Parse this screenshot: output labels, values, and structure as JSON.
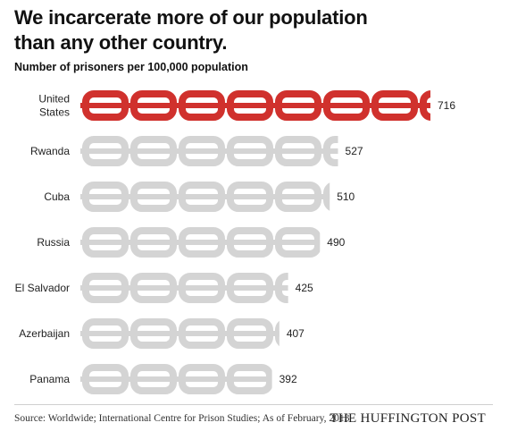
{
  "header": {
    "title": "We incarcerate more of our population than any other country.",
    "subtitle": "Number of prisoners per 100,000 population"
  },
  "footer": {
    "source": "Source: Worldwide; International Centre for Prison Studies; As of February, 2013",
    "brand": "THE HUFFINGTON POST"
  },
  "colors": {
    "highlight": "#d0312d",
    "default": "#d4d4d4"
  },
  "chart_data": {
    "type": "bar",
    "orientation": "horizontal",
    "title": "We incarcerate more of our population than any other country.",
    "subtitle": "Number of prisoners per 100,000 population",
    "categories": [
      "United States",
      "Rwanda",
      "Cuba",
      "Russia",
      "El Salvador",
      "Azerbaijan",
      "Panama"
    ],
    "values": [
      716,
      527,
      510,
      490,
      425,
      407,
      392
    ],
    "highlighted": [
      "United States"
    ],
    "xlim": [
      0,
      716
    ],
    "grid": false,
    "legend": "none"
  }
}
